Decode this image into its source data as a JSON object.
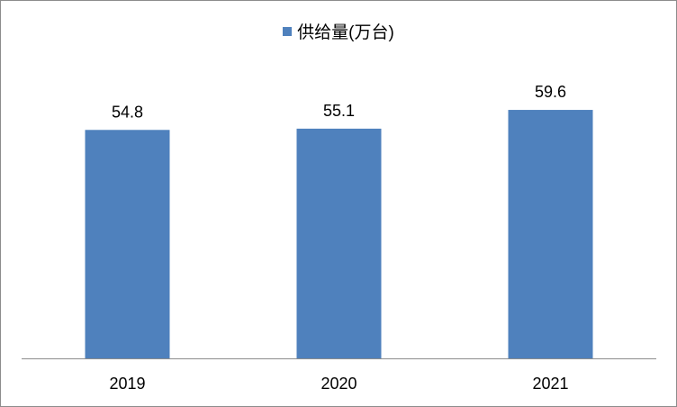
{
  "chart_data": {
    "type": "bar",
    "categories": [
      "2019",
      "2020",
      "2021"
    ],
    "series": [
      {
        "name": "供给量(万台)",
        "values": [
          54.8,
          55.1,
          59.6
        ],
        "color": "#4F81BD"
      }
    ],
    "data_labels": [
      "54.8",
      "55.1",
      "59.6"
    ],
    "ylim": [
      0,
      65
    ],
    "grid": false,
    "legend_position": "top"
  }
}
